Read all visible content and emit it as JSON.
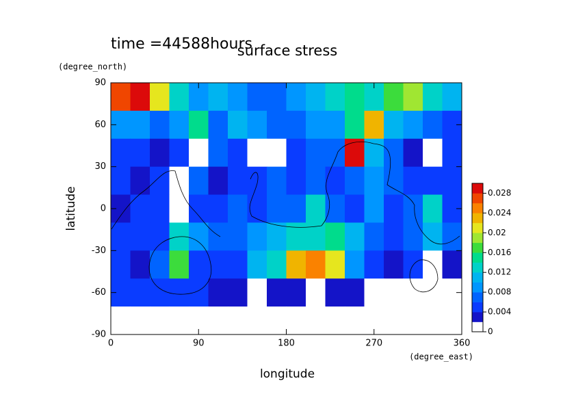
{
  "chart_data": {
    "type": "contour",
    "title": "surface stress",
    "subtitle": "time =44588hours",
    "x_label": "longitude",
    "y_label": "latitude",
    "x_unit": "(degree_east)",
    "y_unit": "(degree_north)",
    "xlim": [
      0,
      360
    ],
    "ylim": [
      -90,
      90
    ],
    "xticks": [
      0,
      90,
      180,
      270,
      360
    ],
    "yticks": [
      -90,
      -60,
      -30,
      0,
      30,
      60,
      90
    ],
    "x": [
      10,
      30,
      50,
      70,
      90,
      110,
      130,
      150,
      170,
      190,
      210,
      230,
      250,
      270,
      290,
      310,
      330,
      350
    ],
    "y": [
      80,
      60,
      40,
      20,
      0,
      -20,
      -40,
      -60,
      -80
    ],
    "z": [
      [
        0.026,
        0.03,
        0.02,
        0.012,
        0.008,
        0.01,
        0.008,
        0.006,
        0.006,
        0.008,
        0.01,
        0.012,
        0.014,
        0.012,
        0.016,
        0.018,
        0.012,
        0.01
      ],
      [
        0.008,
        0.008,
        0.006,
        0.008,
        0.014,
        0.006,
        0.01,
        0.008,
        0.006,
        0.006,
        0.008,
        0.008,
        0.014,
        0.022,
        0.01,
        0.008,
        0.006,
        0.004
      ],
      [
        0.004,
        0.004,
        0.002,
        0.004,
        0.001,
        0.006,
        0.004,
        0.001,
        0.001,
        0.004,
        0.006,
        0.006,
        0.028,
        0.01,
        0.006,
        0.002,
        0.001,
        0.004
      ],
      [
        0.004,
        0.003,
        0.004,
        0.001,
        0.006,
        0.003,
        0.004,
        0.005,
        0.006,
        0.004,
        0.006,
        0.004,
        0.006,
        0.008,
        0.006,
        0.004,
        0.004,
        0.004
      ],
      [
        0.003,
        0.004,
        0.004,
        0.001,
        0.004,
        0.004,
        0.006,
        0.004,
        0.006,
        0.006,
        0.012,
        0.006,
        0.004,
        0.008,
        0.004,
        0.006,
        0.012,
        0.004
      ],
      [
        0.004,
        0.004,
        0.004,
        0.012,
        0.008,
        0.006,
        0.006,
        0.008,
        0.01,
        0.012,
        0.012,
        0.014,
        0.01,
        0.006,
        0.004,
        0.006,
        0.01,
        0.006
      ],
      [
        0.004,
        0.003,
        0.006,
        0.016,
        0.004,
        0.004,
        0.004,
        0.01,
        0.012,
        0.022,
        0.024,
        0.02,
        0.008,
        0.004,
        0.002,
        0.004,
        0.001,
        0.003
      ],
      [
        0.004,
        0.004,
        0.004,
        0.004,
        0.004,
        0.003,
        0.002,
        0.001,
        0.003,
        0.003,
        0.001,
        0.002,
        0.003,
        0.001,
        0.001,
        0.001,
        0.001,
        0.001
      ],
      [
        0,
        0,
        0,
        0,
        0,
        0,
        0,
        0,
        0,
        0,
        0,
        0,
        0,
        0,
        0,
        0,
        0,
        0
      ]
    ],
    "levels": [
      0,
      0.002,
      0.004,
      0.006,
      0.008,
      0.01,
      0.012,
      0.014,
      0.016,
      0.018,
      0.02,
      0.022,
      0.024,
      0.026,
      0.028,
      0.03
    ],
    "colors": [
      "#ffffff",
      "#1414c8",
      "#0a3cff",
      "#0064ff",
      "#0096ff",
      "#00b4f0",
      "#00d2c8",
      "#00dc8c",
      "#3cdc3c",
      "#a0e632",
      "#e6e61e",
      "#f0b400",
      "#fa8200",
      "#f04600",
      "#dc0a0a"
    ],
    "colorbar_ticks": [
      0,
      0.004,
      0.008,
      0.012,
      0.016,
      0.02,
      0.024,
      0.028
    ]
  }
}
